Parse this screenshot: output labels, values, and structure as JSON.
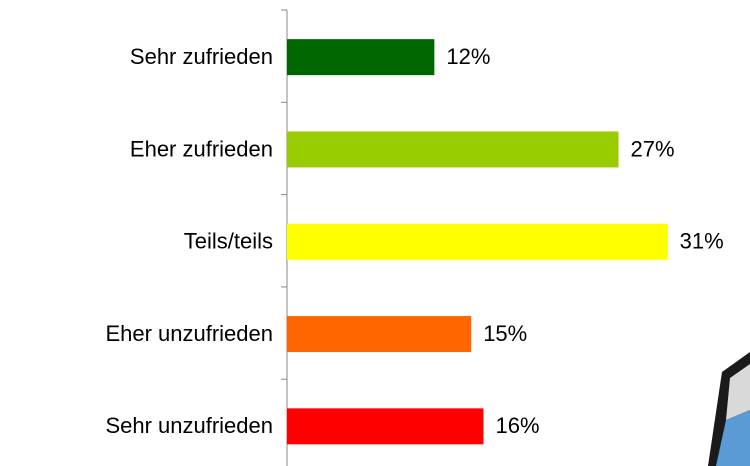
{
  "chart_data": {
    "type": "hbar",
    "categories": [
      "Sehr zufrieden",
      "Eher zufrieden",
      "Teils/teils",
      "Eher unzufrieden",
      "Sehr unzufrieden"
    ],
    "values": [
      12,
      27,
      31,
      15,
      16
    ],
    "value_labels": [
      "12%",
      "27%",
      "31%",
      "15%",
      "16%"
    ],
    "colors": [
      "#006600",
      "#99cc00",
      "#ffff00",
      "#ff6600",
      "#ff0000"
    ]
  }
}
